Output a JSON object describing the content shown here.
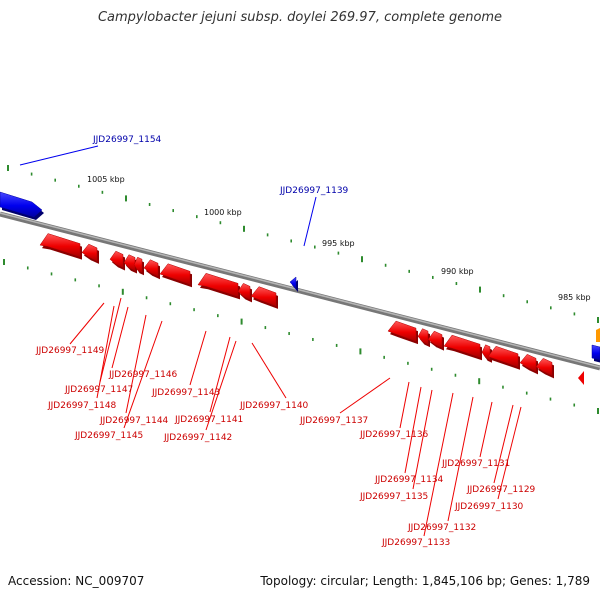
{
  "title": "Campylobacter jejuni subsp. doylei 269.97, complete genome",
  "footer": {
    "accession": "Accession: NC_009707",
    "summary": "Topology: circular; Length: 1,845,106 bp; Genes: 1,789"
  },
  "colors": {
    "backbone": "#8a8a8a",
    "forward_gene": "#0000ee",
    "reverse_gene": "#ee0000",
    "other_gene": "#ff9900",
    "tick": "#2e8b2e",
    "forward_label": "#0000aa",
    "reverse_label": "#cc0000"
  },
  "scale_labels": [
    "1005 kbp",
    "1000 kbp",
    "995 kbp",
    "990 kbp",
    "985 kbp"
  ],
  "forward_labels": [
    "JJD26997_1154",
    "JJD26997_1139"
  ],
  "reverse_labels": [
    "JJD26997_1149",
    "JJD26997_1146",
    "JJD26997_1147",
    "JJD26997_1148",
    "JJD26997_1144",
    "JJD26997_1145",
    "JJD26997_1143",
    "JJD26997_1141",
    "JJD26997_1142",
    "JJD26997_1140",
    "JJD26997_1137",
    "JJD26997_1136",
    "JJD26997_1134",
    "JJD26997_1135",
    "JJD26997_1131",
    "JJD26997_1129",
    "JJD26997_1130",
    "JJD26997_1132",
    "JJD26997_1133"
  ]
}
